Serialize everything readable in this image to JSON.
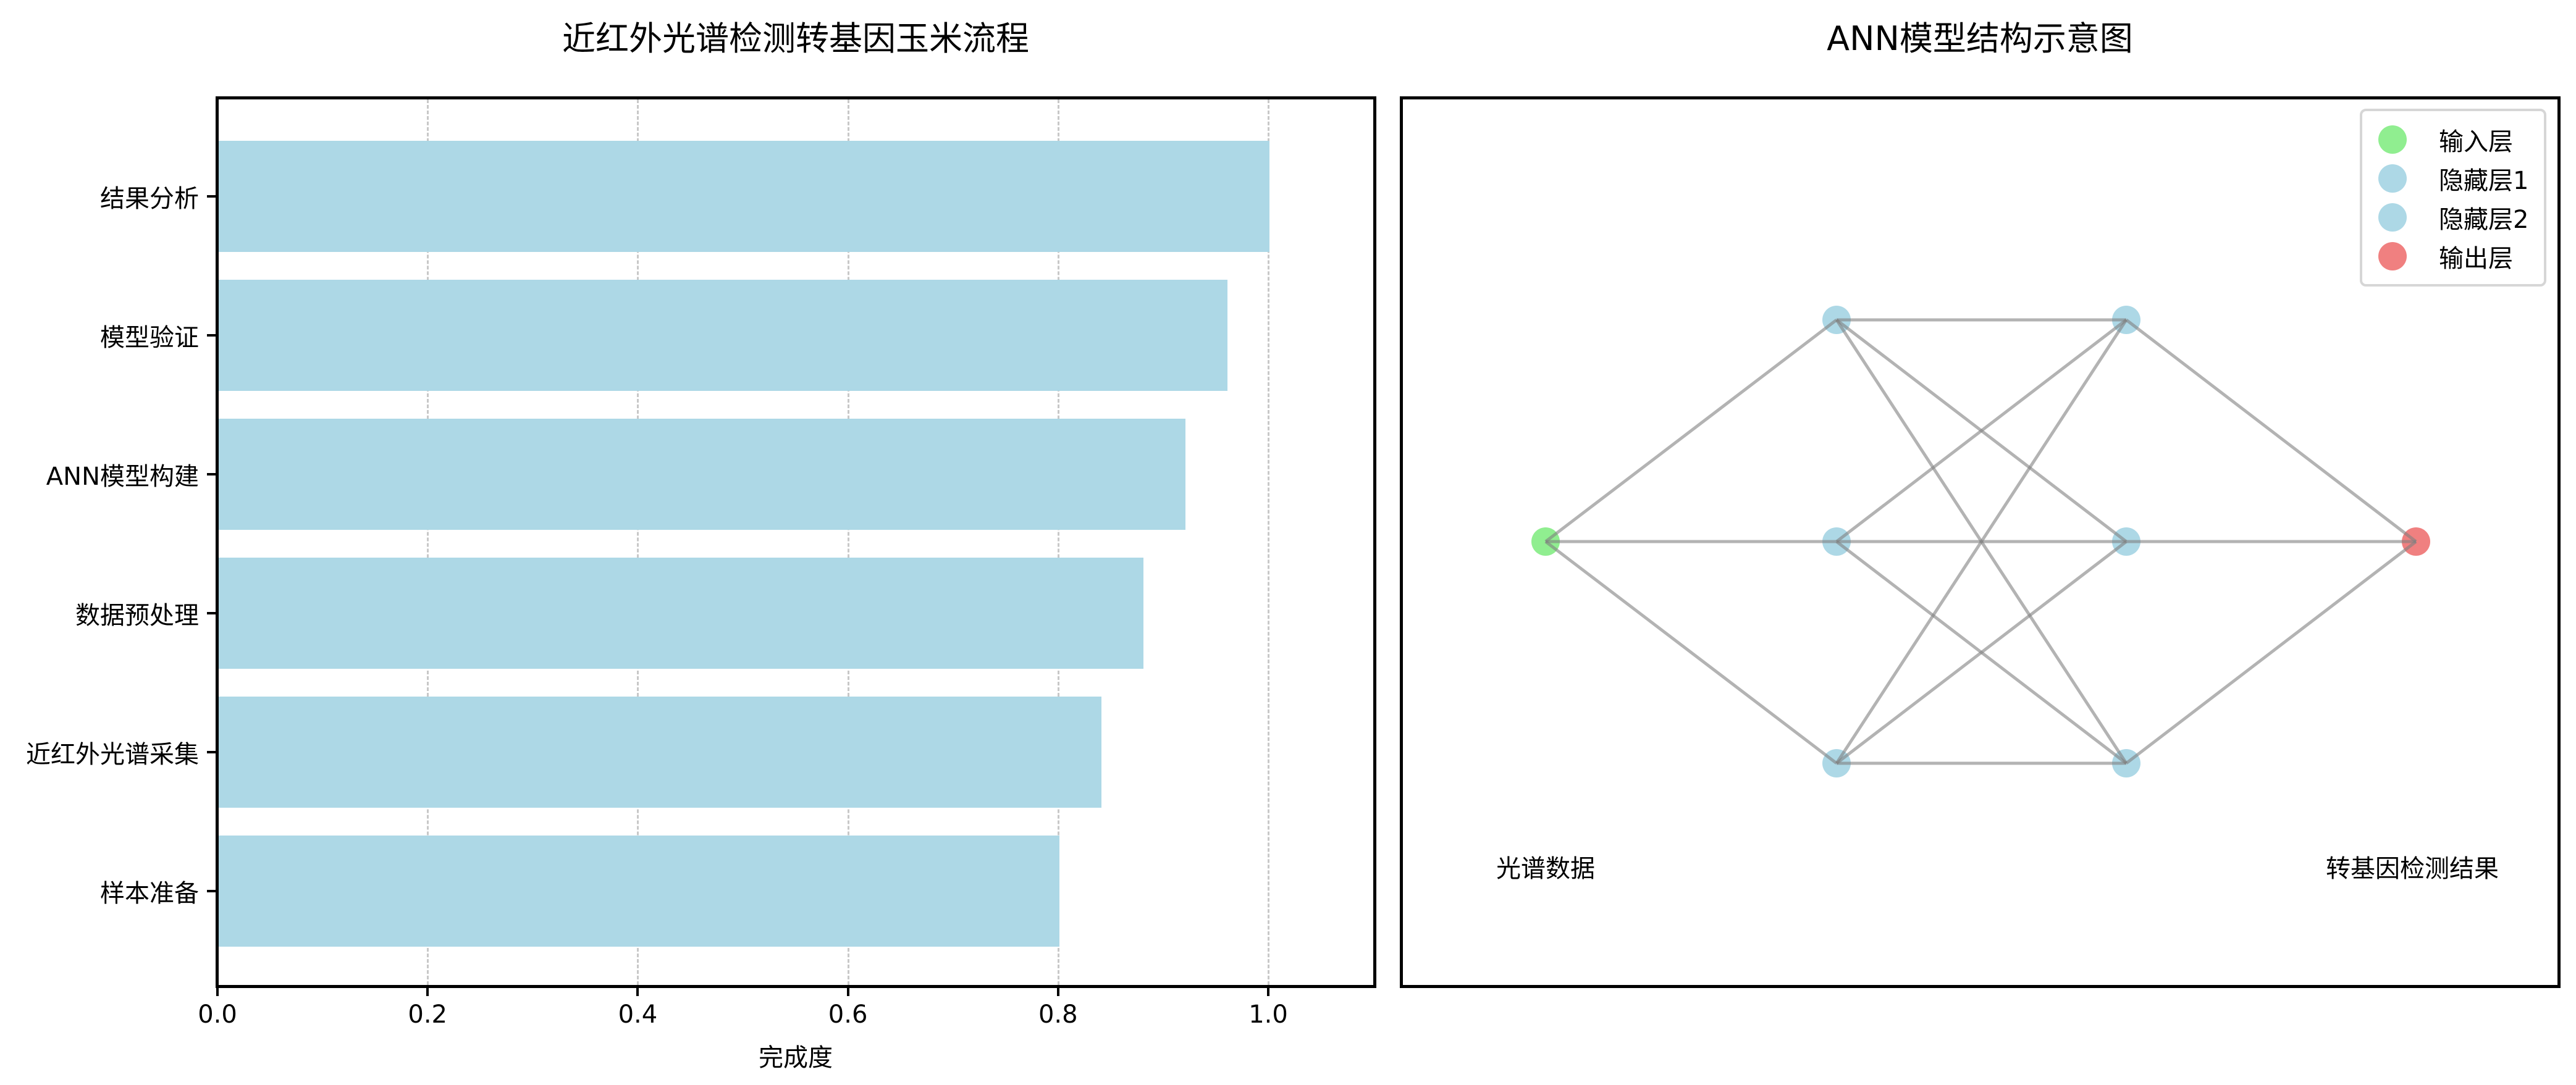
{
  "left_panel": {
    "title": "近红外光谱检测转基因玉米流程",
    "xlabel": "完成度",
    "xticks": [
      "0.0",
      "0.2",
      "0.4",
      "0.6",
      "0.8",
      "1.0"
    ],
    "bars": [
      {
        "label": "结果分析",
        "value": 1.0
      },
      {
        "label": "模型验证",
        "value": 0.96
      },
      {
        "label": "ANN模型构建",
        "value": 0.92
      },
      {
        "label": "数据预处理",
        "value": 0.88
      },
      {
        "label": "近红外光谱采集",
        "value": 0.84
      },
      {
        "label": "样本准备",
        "value": 0.8
      }
    ],
    "bar_color": "#add8e6"
  },
  "right_panel": {
    "title": "ANN模型结构示意图",
    "legend": [
      {
        "label": "输入层",
        "color": "#90ee90"
      },
      {
        "label": "隐藏层1",
        "color": "#add8e6"
      },
      {
        "label": "隐藏层2",
        "color": "#add8e6"
      },
      {
        "label": "输出层",
        "color": "#f08080"
      }
    ],
    "input_label": "光谱数据",
    "output_label": "转基因检测结果",
    "edge_color": "#808080"
  },
  "chart_data": [
    {
      "type": "bar",
      "orientation": "horizontal",
      "title": "近红外光谱检测转基因玉米流程",
      "categories": [
        "样本准备",
        "近红外光谱采集",
        "数据预处理",
        "ANN模型构建",
        "模型验证",
        "结果分析"
      ],
      "values": [
        0.8,
        0.84,
        0.88,
        0.92,
        0.96,
        1.0
      ],
      "xlabel": "完成度",
      "ylabel": "",
      "xlim": [
        0,
        1.1
      ],
      "xticks": [
        0.0,
        0.2,
        0.4,
        0.6,
        0.8,
        1.0
      ],
      "grid": {
        "axis": "x",
        "style": "dashed"
      },
      "color": "#add8e6"
    },
    {
      "type": "network-diagram",
      "title": "ANN模型结构示意图",
      "layers": [
        {
          "name": "输入层",
          "nodes": 1,
          "color": "#90ee90"
        },
        {
          "name": "隐藏层1",
          "nodes": 3,
          "color": "#add8e6"
        },
        {
          "name": "隐藏层2",
          "nodes": 3,
          "color": "#add8e6"
        },
        {
          "name": "输出层",
          "nodes": 1,
          "color": "#f08080"
        }
      ],
      "connections": "fully connected between adjacent layers",
      "annotations": [
        "光谱数据",
        "转基因检测结果"
      ],
      "legend_position": "upper right",
      "axis": "off"
    }
  ]
}
